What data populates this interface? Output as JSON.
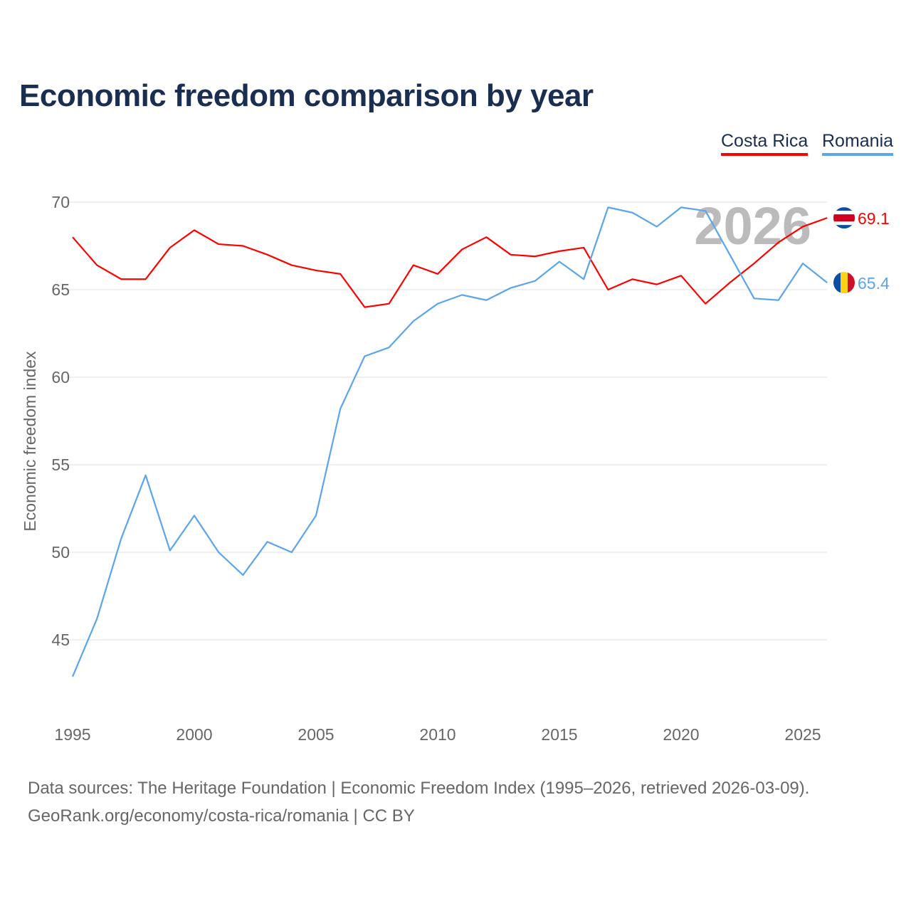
{
  "title": "Economic freedom comparison by year",
  "legend": [
    {
      "label": "Costa Rica",
      "color": "#ff0000"
    },
    {
      "label": "Romania",
      "color": "#5ba4ee"
    }
  ],
  "footer": {
    "line1": "Data sources: The Heritage Foundation | Economic Freedom Index (1995–2026, retrieved 2026-03-09).",
    "line2": "GeoRank.org/economy/costa-rica/romania | CC BY"
  },
  "chart_data": {
    "type": "line",
    "title": "Economic freedom comparison by year",
    "xlabel": "",
    "ylabel": "Economic freedom index",
    "year_watermark": "2026",
    "x": [
      1995,
      1996,
      1997,
      1998,
      1999,
      2000,
      2001,
      2002,
      2003,
      2004,
      2005,
      2006,
      2007,
      2008,
      2009,
      2010,
      2011,
      2012,
      2013,
      2014,
      2015,
      2016,
      2017,
      2018,
      2019,
      2020,
      2021,
      2022,
      2023,
      2024,
      2025,
      2026
    ],
    "xlim": [
      1995,
      2026
    ],
    "ylim": [
      41.5,
      71
    ],
    "xticks": [
      "1995",
      "2000",
      "2005",
      "2010",
      "2015",
      "2020",
      "2025"
    ],
    "yticks": [
      "45",
      "50",
      "55",
      "60",
      "65",
      "70"
    ],
    "grid": true,
    "legend_position": "top-right",
    "series": [
      {
        "name": "Costa Rica",
        "color": "#ff0000",
        "end_label": "69.1",
        "flag": "costa-rica",
        "values": [
          68.0,
          66.4,
          65.6,
          65.6,
          67.4,
          68.4,
          67.6,
          67.5,
          67.0,
          66.4,
          66.1,
          65.9,
          64.0,
          64.2,
          66.4,
          65.9,
          67.3,
          68.0,
          67.0,
          66.9,
          67.2,
          67.4,
          65.0,
          65.6,
          65.3,
          65.8,
          64.2,
          65.4,
          66.5,
          67.7,
          68.6,
          69.1
        ]
      },
      {
        "name": "Romania",
        "color": "#5ba4ee",
        "end_label": "65.4",
        "flag": "romania",
        "values": [
          42.9,
          46.2,
          50.8,
          54.4,
          50.1,
          52.1,
          50.0,
          48.7,
          50.6,
          50.0,
          52.1,
          58.2,
          61.2,
          61.7,
          63.2,
          64.2,
          64.7,
          64.4,
          65.1,
          65.5,
          66.6,
          65.6,
          69.7,
          69.4,
          68.6,
          69.7,
          69.5,
          67.0,
          64.5,
          64.4,
          66.5,
          65.4
        ]
      }
    ]
  }
}
